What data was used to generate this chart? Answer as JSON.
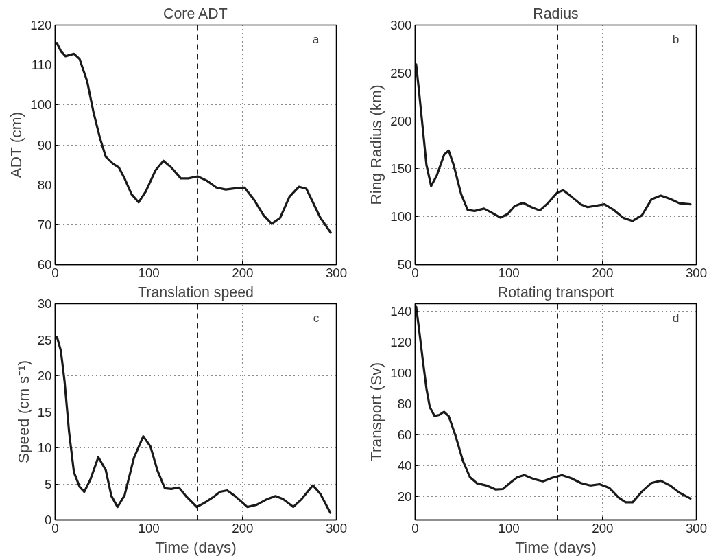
{
  "chart_data": [
    {
      "type": "line",
      "title": "Core ADT",
      "ylabel": "ADT (cm)",
      "annotations": [
        "a"
      ],
      "x": [
        1.8,
        6,
        11,
        20,
        26,
        34,
        41,
        48,
        54,
        61.5,
        68,
        74,
        81.5,
        89,
        96.6,
        107,
        115.5,
        124,
        134,
        142,
        152,
        162,
        172,
        182,
        192,
        202,
        212,
        222.5,
        231,
        240,
        250,
        260,
        268,
        275,
        283,
        294
      ],
      "series": [
        {
          "color": "#1a1a1a",
          "values": [
            115.5,
            113.5,
            112.2,
            112.8,
            111.5,
            106,
            98,
            91.5,
            87,
            85.3,
            84.3,
            81.6,
            77.6,
            75.6,
            78.3,
            83.6,
            86,
            84.3,
            81.6,
            81.6,
            82.1,
            81,
            79.3,
            78.8,
            79.1,
            79.3,
            76.3,
            72.3,
            70.2,
            71.7,
            77,
            79.5,
            79,
            75.6,
            71.7,
            68
          ]
        }
      ],
      "xlim": [
        0,
        300
      ],
      "xticks": [
        0,
        100,
        200,
        300
      ],
      "ylim": [
        60,
        120
      ],
      "yticks": [
        60,
        70,
        80,
        90,
        100,
        110,
        120
      ],
      "grid": true,
      "line_style": "solid",
      "ref_lines": [
        {
          "axis": "x",
          "value": 152,
          "line_style": "dashed",
          "color": "#000000"
        }
      ]
    },
    {
      "type": "line",
      "title": "Radius",
      "ylabel": "Ring Radius (km)",
      "annotations": [
        "b"
      ],
      "x": [
        1,
        4,
        8,
        12,
        17,
        23,
        31,
        35.7,
        41,
        49,
        56,
        63.4,
        73.5,
        81,
        91,
        99,
        106,
        115,
        124,
        133,
        141.5,
        151.5,
        158,
        166.6,
        177,
        184,
        202,
        212,
        222,
        232,
        242,
        252,
        262,
        272,
        282,
        293.7
      ],
      "series": [
        {
          "color": "#1a1a1a",
          "values": [
            259,
            231.5,
            193,
            154,
            132,
            143,
            165,
            169,
            154,
            123.6,
            107,
            106,
            108.5,
            104.5,
            99,
            103,
            111,
            114.5,
            110,
            106.5,
            114,
            125,
            127.6,
            121,
            112.6,
            110,
            113,
            107,
            98.8,
            95.5,
            101.5,
            118,
            122,
            118.6,
            114,
            113
          ]
        }
      ],
      "xlim": [
        0,
        300
      ],
      "xticks": [
        0,
        100,
        200,
        300
      ],
      "ylim": [
        50,
        300
      ],
      "yticks": [
        50,
        100,
        150,
        200,
        250,
        300
      ],
      "grid": true,
      "line_style": "solid",
      "ref_lines": [
        {
          "axis": "x",
          "value": 152,
          "line_style": "dashed",
          "color": "#000000"
        }
      ]
    },
    {
      "type": "line",
      "title": "Translation speed",
      "xlabel": "Time (days)",
      "ylabel": "Speed (cm s⁻¹)",
      "annotations": [
        "c"
      ],
      "x": [
        1.8,
        6,
        10,
        14.8,
        20,
        26,
        31,
        37.5,
        46,
        54,
        60,
        66.5,
        74,
        84,
        94,
        101.6,
        109,
        117,
        124,
        132,
        139.5,
        151,
        159.6,
        168,
        176,
        183.5,
        192,
        205,
        215,
        225,
        235,
        243,
        254,
        263,
        275,
        283,
        293.5
      ],
      "series": [
        {
          "color": "#1a1a1a",
          "values": [
            25.4,
            23.5,
            19.2,
            12.2,
            6.6,
            4.6,
            3.9,
            5.6,
            8.7,
            6.9,
            3.3,
            1.8,
            3.4,
            8.6,
            11.6,
            10.2,
            6.9,
            4.4,
            4.3,
            4.5,
            3.3,
            1.8,
            2.4,
            3.1,
            3.9,
            4.1,
            3.3,
            1.8,
            2.1,
            2.8,
            3.3,
            2.9,
            1.8,
            2.9,
            4.8,
            3.6,
            1
          ]
        }
      ],
      "xlim": [
        0,
        300
      ],
      "xticks": [
        0,
        100,
        200,
        300
      ],
      "ylim": [
        0,
        30
      ],
      "yticks": [
        0,
        5,
        10,
        15,
        20,
        25,
        30
      ],
      "grid": true,
      "line_style": "solid",
      "ref_lines": [
        {
          "axis": "x",
          "value": 152,
          "line_style": "dashed",
          "color": "#000000"
        }
      ]
    },
    {
      "type": "line",
      "title": "Rotating transport",
      "xlabel": "Time (days)",
      "ylabel": "Transport (Sv)",
      "annotations": [
        "d"
      ],
      "x": [
        1,
        4,
        8,
        12,
        15.6,
        20.6,
        25.7,
        30.7,
        35.7,
        43.3,
        50.8,
        58.4,
        66,
        76,
        86,
        93.6,
        101,
        109,
        116.5,
        126.5,
        136.4,
        146.5,
        156.5,
        166.6,
        176.7,
        186.7,
        196.8,
        207,
        217,
        224.6,
        232,
        242,
        252,
        262,
        272,
        282,
        293.7
      ],
      "series": [
        {
          "color": "#1a1a1a",
          "values": [
            143,
            129,
            109,
            90,
            78,
            72.3,
            73,
            75,
            72.3,
            59,
            43.4,
            32.7,
            28.7,
            27.3,
            24.7,
            25,
            28.9,
            32.7,
            34,
            31.5,
            30,
            32.3,
            34,
            32,
            28.9,
            27.3,
            28.1,
            25.8,
            19.5,
            16.4,
            16.4,
            23.4,
            28.9,
            30.4,
            27.3,
            22.6,
            18.8
          ]
        }
      ],
      "xlim": [
        0,
        300
      ],
      "xticks": [
        0,
        100,
        200,
        300
      ],
      "ylim": [
        5,
        145
      ],
      "yticks": [
        20,
        40,
        60,
        80,
        100,
        120,
        140
      ],
      "grid": true,
      "line_style": "solid",
      "ref_lines": [
        {
          "axis": "x",
          "value": 152,
          "line_style": "dashed",
          "color": "#000000"
        }
      ]
    }
  ]
}
